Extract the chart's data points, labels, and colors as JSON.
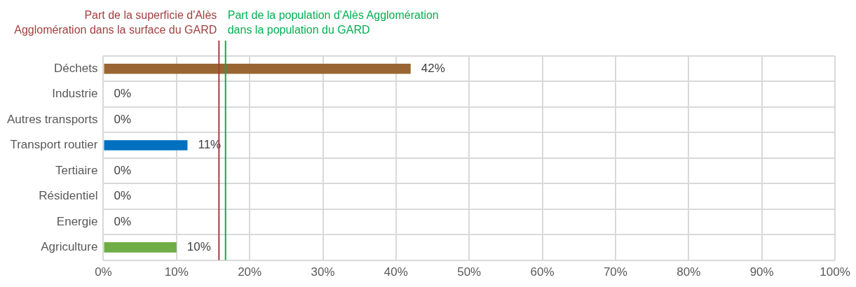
{
  "chart_data": {
    "type": "bar",
    "orientation": "horizontal",
    "categories": [
      "Déchets",
      "Industrie",
      "Autres transports",
      "Transport routier",
      "Tertiaire",
      "Résidentiel",
      "Energie",
      "Agriculture"
    ],
    "values": [
      42,
      0,
      0,
      11.5,
      0,
      0,
      0,
      10
    ],
    "colors": [
      "#996633",
      "#996633",
      "#996633",
      "#0070c0",
      "#0070c0",
      "#0070c0",
      "#0070c0",
      "#70ad47"
    ],
    "value_labels": [
      "42%",
      "0%",
      "0%",
      "11%",
      "0%",
      "0%",
      "0%",
      "10%"
    ],
    "xlim": [
      0,
      100
    ],
    "xticks": [
      {
        "value": 0,
        "label": "0%"
      },
      {
        "value": 10,
        "label": "10%"
      },
      {
        "value": 20,
        "label": "20%"
      },
      {
        "value": 30,
        "label": "30%"
      },
      {
        "value": 40,
        "label": "40%"
      },
      {
        "value": 50,
        "label": "50%"
      },
      {
        "value": 60,
        "label": "60%"
      },
      {
        "value": 70,
        "label": "70%"
      },
      {
        "value": 80,
        "label": "80%"
      },
      {
        "value": 90,
        "label": "90%"
      },
      {
        "value": 100,
        "label": "100%"
      }
    ],
    "ref_lines": [
      {
        "axis": "x",
        "value": 15.8,
        "label": "Part de la superficie d'Alès\nAgglomération dans la surface du GARD",
        "color": "#a0403f"
      },
      {
        "axis": "x",
        "value": 16.7,
        "label": "Part de la population d'Alès Agglomération\ndans la population du GARD",
        "color": "#00b050"
      }
    ],
    "grid": true,
    "legend": false
  }
}
